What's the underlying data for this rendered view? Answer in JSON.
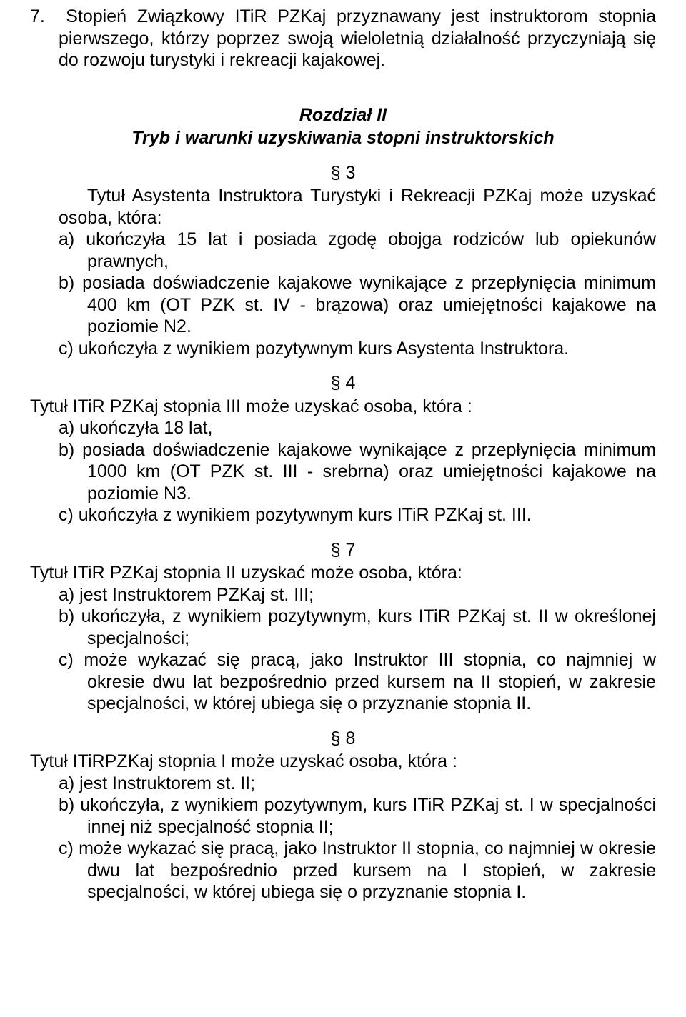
{
  "s7": {
    "text": "7.  Stopień Związkowy ITiR PZKaj przyznawany jest instruktorom stopnia pierwszego, którzy poprzez swoją wieloletnią działalność przyczyniają się do rozwoju turystyki i rekreacji kajakowej."
  },
  "chapter": {
    "line1": "Rozdział II",
    "line2": "Tryb i warunki uzyskiwania stopni instruktorskich"
  },
  "p3": {
    "num": "§ 3",
    "lead": "Tytuł Asystenta Instruktora Turystyki i Rekreacji PZKaj może uzyskać osoba, która:",
    "a": "a) ukończyła 15 lat i posiada zgodę obojga rodziców lub opiekunów prawnych,",
    "b": "b) posiada doświadczenie kajakowe wynikające z przepłynięcia minimum 400 km (OT PZK st. IV - brązowa) oraz umiejętności kajakowe na poziomie N2.",
    "c": "c) ukończyła z wynikiem pozytywnym kurs Asystenta Instruktora."
  },
  "p4": {
    "num": "§ 4",
    "lead": "Tytuł ITiR PZKaj stopnia III może uzyskać osoba, która :",
    "a": "a) ukończyła 18 lat,",
    "b": "b) posiada doświadczenie kajakowe wynikające z przepłynięcia minimum 1000 km (OT PZK st. III - srebrna) oraz umiejętności kajakowe na poziomie N3.",
    "c": "c) ukończyła z wynikiem pozytywnym kurs ITiR PZKaj st. III."
  },
  "p7": {
    "num": "§ 7",
    "lead": "Tytuł ITiR PZKaj stopnia II uzyskać może osoba, która:",
    "a": "a) jest Instruktorem PZKaj st. III;",
    "b": "b) ukończyła, z wynikiem pozytywnym, kurs ITiR PZKaj st. II w określonej specjalności;",
    "c": "c) może wykazać się pracą, jako Instruktor III stopnia, co najmniej w okresie dwu lat bezpośrednio przed kursem na II stopień, w zakresie specjalności, w której ubiega się o przyznanie stopnia II."
  },
  "p8": {
    "num": "§ 8",
    "lead": "Tytuł ITiRPZKaj stopnia I może uzyskać osoba, która :",
    "a": "a) jest Instruktorem st. II;",
    "b": "b) ukończyła, z wynikiem pozytywnym, kurs ITiR PZKaj st. I w specjalności innej niż specjalność stopnia II;",
    "c": "c) może wykazać się pracą, jako Instruktor II stopnia, co najmniej w okresie dwu lat bezpośrednio przed kursem na I stopień, w zakresie specjalności, w której ubiega się o przyznanie stopnia I."
  }
}
